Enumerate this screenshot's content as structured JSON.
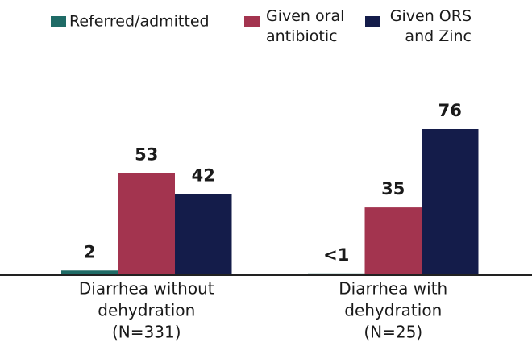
{
  "chart_data": {
    "type": "bar",
    "categories": [
      [
        "Diarrhea without",
        "dehydration",
        "(N=331)"
      ],
      [
        "Diarrhea with",
        "dehydration",
        "(N=25)"
      ]
    ],
    "series": [
      {
        "name": "Referred/admitted",
        "color": "#1f6b66",
        "values": [
          2,
          0.5
        ],
        "value_labels": [
          "2",
          "<1"
        ]
      },
      {
        "name": "Given oral antibiotic",
        "color": "#a3344f",
        "values": [
          53,
          35
        ]
      },
      {
        "name": "Given ORS and Zinc",
        "color": "#141c4a",
        "values": [
          42,
          76
        ]
      }
    ],
    "ylim": [
      0,
      76
    ],
    "legend": "top"
  }
}
